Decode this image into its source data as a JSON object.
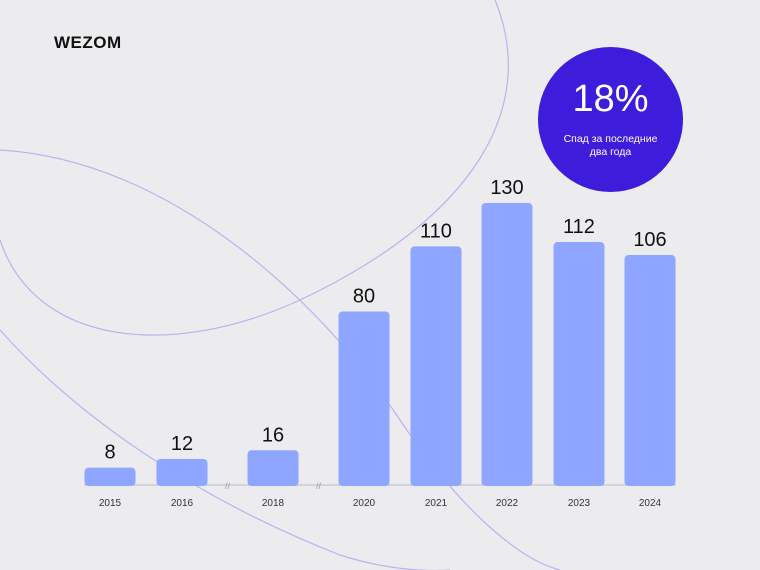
{
  "brand": {
    "logo_text": "WEZOM"
  },
  "badge": {
    "value": "18%",
    "caption": "Спад за последние два года"
  },
  "colors": {
    "background": "#ececef",
    "bar": "#8ea6ff",
    "badge": "#3d1ddb",
    "decor_line": "#b9b3ee",
    "axis": "#b7b7c4"
  },
  "chart_data": {
    "type": "bar",
    "categories": [
      "2015",
      "2016",
      "2018",
      "2020",
      "2021",
      "2022",
      "2023",
      "2024"
    ],
    "values": [
      8,
      12,
      16,
      80,
      110,
      130,
      112,
      106
    ],
    "data_labels": [
      "8",
      "12",
      "16",
      "80",
      "110",
      "130",
      "112",
      "106"
    ],
    "axis_breaks": [
      "between 2016 and 2018",
      "between 2018 and 2020"
    ],
    "title": "",
    "xlabel": "",
    "ylabel": "",
    "ylim": [
      0,
      130
    ],
    "grid": false,
    "legend": "none"
  }
}
